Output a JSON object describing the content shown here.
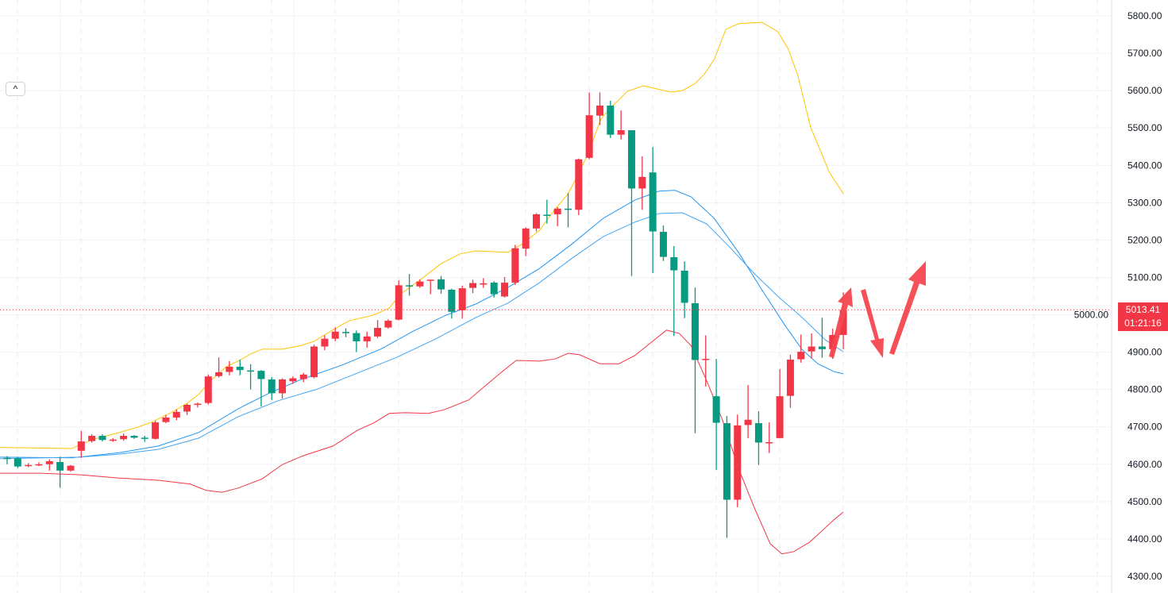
{
  "chart_data": {
    "type": "candlestick",
    "title": "",
    "up_color": "#F23645",
    "down_color": "#089981",
    "ylim": [
      4300,
      5800
    ],
    "y_ticks": [
      "5800.00",
      "5700.00",
      "5600.00",
      "5500.00",
      "5400.00",
      "5300.00",
      "5200.00",
      "5100.00",
      "5000.00",
      "4900.00",
      "4800.00",
      "4700.00",
      "4600.00",
      "4500.00",
      "4400.00",
      "4300.00"
    ],
    "candles_ohlc": [
      [
        4617,
        4622,
        4600,
        4615
      ],
      [
        4616,
        4620,
        4590,
        4594
      ],
      [
        4595,
        4603,
        4592,
        4598
      ],
      [
        4599,
        4605,
        4595,
        4600
      ],
      [
        4600,
        4613,
        4583,
        4608
      ],
      [
        4606,
        4620,
        4537,
        4583
      ],
      [
        4583,
        4598,
        4580,
        4596
      ],
      [
        4636,
        4689,
        4617,
        4661
      ],
      [
        4662,
        4680,
        4658,
        4676
      ],
      [
        4676,
        4680,
        4661,
        4665
      ],
      [
        4664,
        4670,
        4660,
        4666
      ],
      [
        4667,
        4682,
        4663,
        4676
      ],
      [
        4676,
        4678,
        4668,
        4671
      ],
      [
        4671,
        4676,
        4660,
        4670
      ],
      [
        4668,
        4716,
        4666,
        4712
      ],
      [
        4713,
        4732,
        4710,
        4725
      ],
      [
        4725,
        4747,
        4718,
        4740
      ],
      [
        4741,
        4762,
        4732,
        4759
      ],
      [
        4760,
        4765,
        4752,
        4762
      ],
      [
        4764,
        4840,
        4760,
        4835
      ],
      [
        4836,
        4886,
        4832,
        4846
      ],
      [
        4847,
        4876,
        4838,
        4861
      ],
      [
        4861,
        4880,
        4838,
        4852
      ],
      [
        4851,
        4868,
        4800,
        4850
      ],
      [
        4850,
        4852,
        4755,
        4828
      ],
      [
        4827,
        4833,
        4772,
        4790
      ],
      [
        4790,
        4830,
        4776,
        4827
      ],
      [
        4822,
        4835,
        4815,
        4830
      ],
      [
        4828,
        4845,
        4820,
        4840
      ],
      [
        4833,
        4920,
        4830,
        4915
      ],
      [
        4915,
        4945,
        4905,
        4936
      ],
      [
        4936,
        4966,
        4929,
        4955
      ],
      [
        4954,
        4964,
        4940,
        4953
      ],
      [
        4951,
        4958,
        4900,
        4929
      ],
      [
        4929,
        4955,
        4912,
        4942
      ],
      [
        4942,
        4986,
        4938,
        4965
      ],
      [
        4966,
        4988,
        4963,
        4984
      ],
      [
        4987,
        5092,
        4985,
        5079
      ],
      [
        5079,
        5109,
        5051,
        5078
      ],
      [
        5076,
        5095,
        5072,
        5089
      ],
      [
        5091,
        5094,
        5055,
        5094
      ],
      [
        5095,
        5104,
        5056,
        5068
      ],
      [
        5067,
        5070,
        4990,
        5008
      ],
      [
        5012,
        5078,
        4990,
        5071
      ],
      [
        5072,
        5094,
        5058,
        5085
      ],
      [
        5082,
        5098,
        5072,
        5084
      ],
      [
        5086,
        5090,
        5046,
        5055
      ],
      [
        5049,
        5101,
        5046,
        5086
      ],
      [
        5086,
        5187,
        5080,
        5178
      ],
      [
        5177,
        5234,
        5157,
        5231
      ],
      [
        5231,
        5272,
        5223,
        5269
      ],
      [
        5268,
        5308,
        5244,
        5267
      ],
      [
        5269,
        5288,
        5237,
        5284
      ],
      [
        5284,
        5326,
        5234,
        5283
      ],
      [
        5281,
        5418,
        5267,
        5416
      ],
      [
        5420,
        5595,
        5416,
        5534
      ],
      [
        5533,
        5595,
        5508,
        5560
      ],
      [
        5560,
        5573,
        5473,
        5482
      ],
      [
        5482,
        5547,
        5469,
        5494
      ],
      [
        5494,
        5494,
        5104,
        5338
      ],
      [
        5338,
        5424,
        5281,
        5369
      ],
      [
        5381,
        5449,
        5112,
        5223
      ],
      [
        5222,
        5239,
        5144,
        5155
      ],
      [
        5154,
        5184,
        4943,
        5119
      ],
      [
        5118,
        5143,
        4991,
        5032
      ],
      [
        5031,
        5073,
        4683,
        4879
      ],
      [
        4881,
        4945,
        4808,
        4882
      ],
      [
        4782,
        4882,
        4585,
        4711
      ],
      [
        4710,
        4729,
        4403,
        4505
      ],
      [
        4505,
        4733,
        4485,
        4704
      ],
      [
        4705,
        4812,
        4670,
        4719
      ],
      [
        4710,
        4742,
        4598,
        4658
      ],
      [
        4657,
        4712,
        4630,
        4659
      ],
      [
        4670,
        4855,
        4670,
        4782
      ],
      [
        4783,
        4893,
        4751,
        4880
      ],
      [
        4881,
        4947,
        4872,
        4901
      ],
      [
        4902,
        4950,
        4883,
        4915
      ],
      [
        4915,
        4992,
        4885,
        4908
      ],
      [
        4908,
        4963,
        4882,
        4946
      ],
      [
        4946,
        5060,
        4908,
        5013
      ]
    ],
    "lines": [
      {
        "name": "upper-band",
        "color": "#FFC400",
        "points": [
          [
            -0.7,
            4645
          ],
          [
            6.1,
            4642
          ],
          [
            6.8,
            4651
          ],
          [
            8.3,
            4668
          ],
          [
            10.6,
            4685
          ],
          [
            12.4,
            4700
          ],
          [
            13.6,
            4712
          ],
          [
            15.5,
            4738
          ],
          [
            17,
            4763
          ],
          [
            18.1,
            4787
          ],
          [
            19.2,
            4823
          ],
          [
            20.7,
            4861
          ],
          [
            21.8,
            4876
          ],
          [
            23,
            4895
          ],
          [
            24.1,
            4908
          ],
          [
            26,
            4908
          ],
          [
            27.8,
            4918
          ],
          [
            29,
            4929
          ],
          [
            30.8,
            4960
          ],
          [
            32.3,
            4984
          ],
          [
            34.6,
            4999
          ],
          [
            36.1,
            5018
          ],
          [
            37.2,
            5056
          ],
          [
            39.1,
            5095
          ],
          [
            41,
            5137
          ],
          [
            42.8,
            5163
          ],
          [
            44.3,
            5171
          ],
          [
            47.3,
            5167
          ],
          [
            48.8,
            5192
          ],
          [
            50.3,
            5226
          ],
          [
            51.8,
            5284
          ],
          [
            53,
            5324
          ],
          [
            54.1,
            5384
          ],
          [
            55,
            5439
          ],
          [
            56.1,
            5524
          ],
          [
            57.1,
            5556
          ],
          [
            58.6,
            5598
          ],
          [
            60.1,
            5613
          ],
          [
            62.7,
            5596
          ],
          [
            63.8,
            5600
          ],
          [
            65,
            5619
          ],
          [
            65.9,
            5645
          ],
          [
            66.8,
            5683
          ],
          [
            67.9,
            5764
          ],
          [
            69.1,
            5779
          ],
          [
            71.3,
            5783
          ],
          [
            72.8,
            5758
          ],
          [
            73.8,
            5711
          ],
          [
            74.7,
            5641
          ],
          [
            75.9,
            5503
          ],
          [
            77.7,
            5380
          ],
          [
            79,
            5324
          ]
        ]
      },
      {
        "name": "lower-band",
        "color": "#F23645",
        "points": [
          [
            -0.7,
            4576
          ],
          [
            3.1,
            4576
          ],
          [
            6.8,
            4572
          ],
          [
            10.6,
            4563
          ],
          [
            14.3,
            4557
          ],
          [
            17.3,
            4547
          ],
          [
            18.8,
            4530
          ],
          [
            20.3,
            4525
          ],
          [
            21.8,
            4536
          ],
          [
            24.1,
            4561
          ],
          [
            26,
            4599
          ],
          [
            27.8,
            4621
          ],
          [
            30.8,
            4649
          ],
          [
            33.1,
            4691
          ],
          [
            34.6,
            4710
          ],
          [
            36.1,
            4736
          ],
          [
            37.6,
            4738
          ],
          [
            39.8,
            4736
          ],
          [
            41.3,
            4746
          ],
          [
            43.6,
            4772
          ],
          [
            45.1,
            4808
          ],
          [
            46.6,
            4844
          ],
          [
            48.1,
            4878
          ],
          [
            50.3,
            4876
          ],
          [
            51.8,
            4882
          ],
          [
            53,
            4897
          ],
          [
            54.1,
            4893
          ],
          [
            56,
            4869
          ],
          [
            57.8,
            4869
          ],
          [
            59.3,
            4891
          ],
          [
            60.8,
            4925
          ],
          [
            62.3,
            4959
          ],
          [
            63.5,
            4950
          ],
          [
            64.6,
            4918
          ],
          [
            66.1,
            4823
          ],
          [
            67.6,
            4717
          ],
          [
            69.1,
            4589
          ],
          [
            70.6,
            4483
          ],
          [
            72.1,
            4387
          ],
          [
            73.2,
            4360
          ],
          [
            74.3,
            4366
          ],
          [
            75.8,
            4391
          ],
          [
            77.3,
            4430
          ],
          [
            78.1,
            4451
          ],
          [
            79,
            4472
          ]
        ]
      },
      {
        "name": "moving-average-fast",
        "color": "#2196F3",
        "points": [
          [
            -0.7,
            4619
          ],
          [
            6.1,
            4617
          ],
          [
            10.6,
            4631
          ],
          [
            14.3,
            4649
          ],
          [
            18.1,
            4685
          ],
          [
            21.8,
            4748
          ],
          [
            24.8,
            4791
          ],
          [
            27.8,
            4827
          ],
          [
            31.6,
            4865
          ],
          [
            35.3,
            4908
          ],
          [
            38.3,
            4955
          ],
          [
            41.3,
            4997
          ],
          [
            44.3,
            5029
          ],
          [
            47.3,
            5073
          ],
          [
            50.3,
            5124
          ],
          [
            53.3,
            5188
          ],
          [
            56.3,
            5258
          ],
          [
            59.3,
            5307
          ],
          [
            61.6,
            5331
          ],
          [
            63.1,
            5333
          ],
          [
            64.6,
            5316
          ],
          [
            66.8,
            5258
          ],
          [
            69.1,
            5167
          ],
          [
            71.3,
            5067
          ],
          [
            73.6,
            4967
          ],
          [
            75.1,
            4907
          ],
          [
            76.6,
            4869
          ],
          [
            78.1,
            4848
          ],
          [
            79,
            4842
          ]
        ]
      },
      {
        "name": "moving-average-slow",
        "color": "#42A5F5",
        "points": [
          [
            -0.7,
            4615
          ],
          [
            6.8,
            4619
          ],
          [
            10.6,
            4627
          ],
          [
            14.3,
            4640
          ],
          [
            18.1,
            4670
          ],
          [
            21.8,
            4727
          ],
          [
            25.6,
            4770
          ],
          [
            29.3,
            4801
          ],
          [
            33.1,
            4844
          ],
          [
            36.8,
            4886
          ],
          [
            40.6,
            4937
          ],
          [
            44.3,
            4993
          ],
          [
            47.3,
            5031
          ],
          [
            50.3,
            5086
          ],
          [
            53.3,
            5150
          ],
          [
            56.3,
            5209
          ],
          [
            59.3,
            5248
          ],
          [
            61.6,
            5271
          ],
          [
            63.8,
            5273
          ],
          [
            66.1,
            5243
          ],
          [
            68.3,
            5180
          ],
          [
            70.6,
            5110
          ],
          [
            72.8,
            5050
          ],
          [
            75.1,
            4993
          ],
          [
            77.3,
            4933
          ],
          [
            79,
            4901
          ]
        ]
      }
    ],
    "last_price": 5013.41
  },
  "price_badge": {
    "price": "5013.41",
    "countdown": "01:21:16"
  },
  "collapse_button": {
    "label": "^"
  }
}
